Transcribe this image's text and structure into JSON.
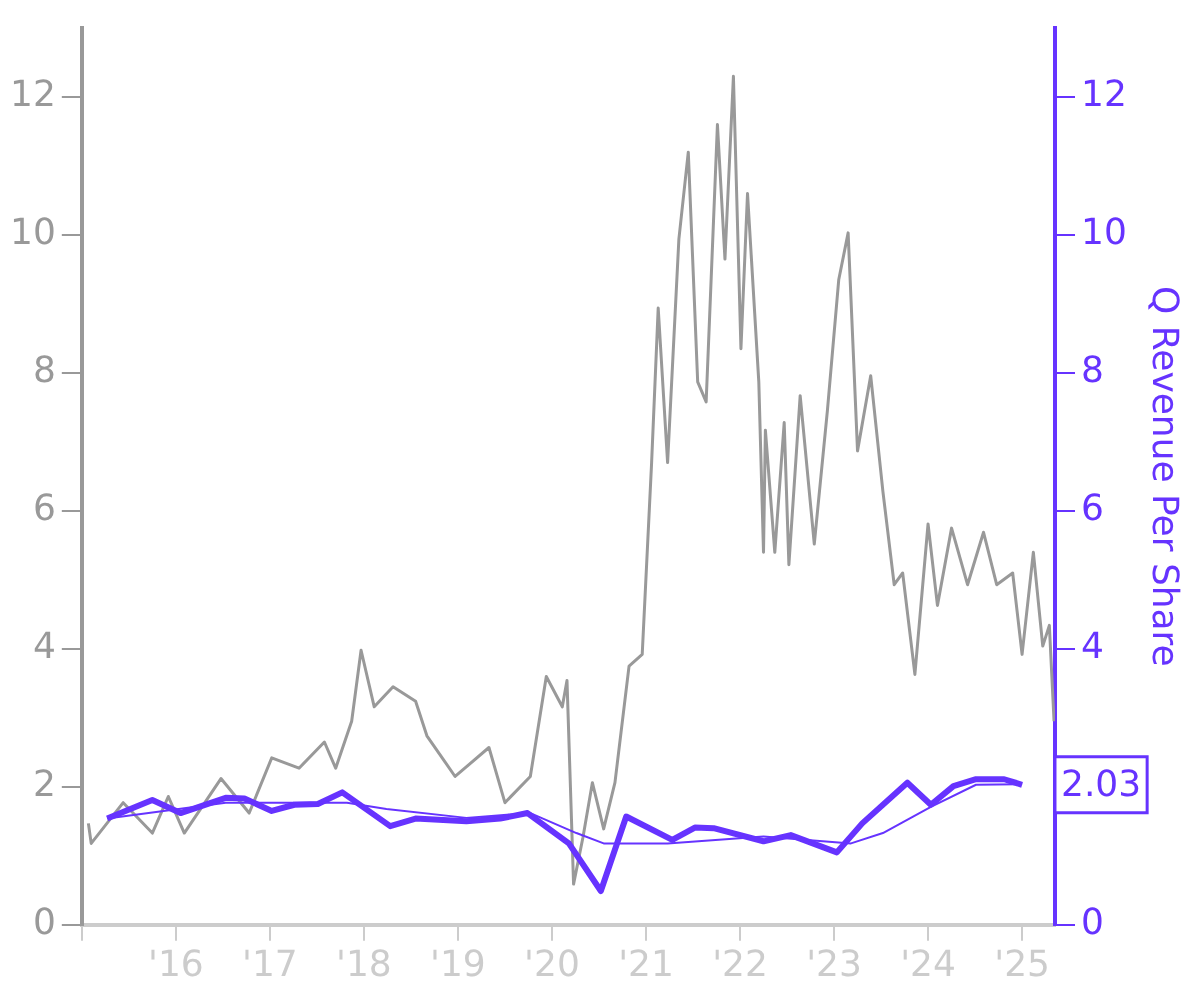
{
  "chart_data": {
    "type": "line",
    "y2label": "Q Revenue Per Share",
    "xlim": [
      2015,
      2025.35
    ],
    "xticks": [
      {
        "value": 2015,
        "label": null
      },
      {
        "value": 2016,
        "label": "'16"
      },
      {
        "value": 2017,
        "label": "'17"
      },
      {
        "value": 2018,
        "label": "'18"
      },
      {
        "value": 2019,
        "label": "'19"
      },
      {
        "value": 2020,
        "label": "'20"
      },
      {
        "value": 2021,
        "label": "'21"
      },
      {
        "value": 2022,
        "label": "'22"
      },
      {
        "value": 2023,
        "label": "'23"
      },
      {
        "value": 2024,
        "label": "'24"
      },
      {
        "value": 2025,
        "label": "'25"
      }
    ],
    "ylim": [
      0,
      13
    ],
    "yticks": [
      0,
      2,
      4,
      6,
      8,
      10,
      12
    ],
    "y2lim": [
      0,
      13
    ],
    "y2ticks": [
      0,
      {
        "value": 2,
        "label": null
      },
      4,
      6,
      8,
      10,
      12
    ],
    "grid": false,
    "legend": false,
    "marker": "none",
    "line_style": "solid",
    "series": [
      {
        "color": "#999999",
        "x": [
          2015.07,
          2015.1,
          2015.44,
          2015.75,
          2015.92,
          2016.09,
          2016.48,
          2016.78,
          2017.02,
          2017.31,
          2017.58,
          2017.7,
          2017.87,
          2017.97,
          2018.11,
          2018.31,
          2018.55,
          2018.67,
          2018.97,
          2019.33,
          2019.5,
          2019.77,
          2019.94,
          2020.11,
          2020.16,
          2020.23,
          2020.33,
          2020.43,
          2020.55,
          2020.67,
          2020.82,
          2020.96,
          2021.06,
          2021.13,
          2021.23,
          2021.35,
          2021.45,
          2021.55,
          2021.64,
          2021.76,
          2021.84,
          2021.93,
          2022.01,
          2022.08,
          2022.2,
          2022.25,
          2022.27,
          2022.37,
          2022.47,
          2022.52,
          2022.64,
          2022.79,
          2022.93,
          2023.05,
          2023.15,
          2023.25,
          2023.39,
          2023.52,
          2023.64,
          2023.73,
          2023.86,
          2024.0,
          2024.1,
          2024.25,
          2024.42,
          2024.59,
          2024.73,
          2024.9,
          2025.0,
          2025.12,
          2025.22,
          2025.29,
          2025.34
        ],
        "values": [
          1.47,
          1.18,
          1.77,
          1.33,
          1.86,
          1.33,
          2.12,
          1.62,
          2.42,
          2.27,
          2.65,
          2.27,
          2.95,
          3.98,
          3.16,
          3.45,
          3.24,
          2.74,
          2.15,
          2.57,
          1.77,
          2.15,
          3.6,
          3.16,
          3.54,
          0.59,
          1.27,
          2.06,
          1.39,
          2.06,
          3.75,
          3.92,
          6.7,
          8.94,
          6.7,
          9.94,
          11.2,
          7.87,
          7.58,
          11.6,
          9.65,
          12.3,
          8.35,
          10.6,
          7.87,
          5.4,
          7.17,
          5.4,
          7.28,
          5.22,
          7.67,
          5.52,
          7.46,
          9.35,
          10.03,
          6.87,
          7.96,
          6.28,
          4.93,
          5.1,
          3.63,
          5.81,
          4.63,
          5.75,
          4.93,
          5.69,
          4.93,
          5.1,
          3.92,
          5.4,
          4.04,
          4.34,
          2.95
        ]
      },
      {
        "color": "#6633ff",
        "axis": "y2",
        "x": [
          2015.27,
          2015.75,
          2016.05,
          2016.53,
          2016.73,
          2017.02,
          2017.26,
          2017.51,
          2017.77,
          2018.28,
          2018.55,
          2019.09,
          2019.45,
          2019.74,
          2020.18,
          2020.52,
          2020.79,
          2021.28,
          2021.52,
          2021.72,
          2022.25,
          2022.54,
          2023.03,
          2023.3,
          2023.78,
          2024.03,
          2024.27,
          2024.51,
          2024.81,
          2025.0
        ],
        "values": [
          1.54,
          1.81,
          1.62,
          1.84,
          1.83,
          1.65,
          1.74,
          1.75,
          1.92,
          1.43,
          1.54,
          1.5,
          1.54,
          1.62,
          1.18,
          0.49,
          1.57,
          1.23,
          1.41,
          1.4,
          1.21,
          1.3,
          1.05,
          1.47,
          2.06,
          1.74,
          2.01,
          2.11,
          2.11,
          2.03
        ],
        "value_labels": [
          null,
          null,
          null,
          null,
          null,
          null,
          null,
          null,
          null,
          null,
          null,
          null,
          null,
          null,
          null,
          null,
          null,
          null,
          null,
          null,
          null,
          null,
          null,
          null,
          null,
          null,
          null,
          null,
          null,
          "2.03"
        ]
      },
      {
        "color": "#6633ff",
        "axis": "y2",
        "x": [
          2015.27,
          2016.53,
          2017.82,
          2018.24,
          2019.09,
          2019.77,
          2020.26,
          2020.55,
          2021.23,
          2022.25,
          2023.18,
          2023.52,
          2024.03,
          2024.51,
          2025.0
        ],
        "values": [
          1.54,
          1.77,
          1.77,
          1.68,
          1.55,
          1.62,
          1.33,
          1.18,
          1.18,
          1.28,
          1.18,
          1.33,
          1.71,
          2.03,
          2.04
        ]
      }
    ]
  }
}
